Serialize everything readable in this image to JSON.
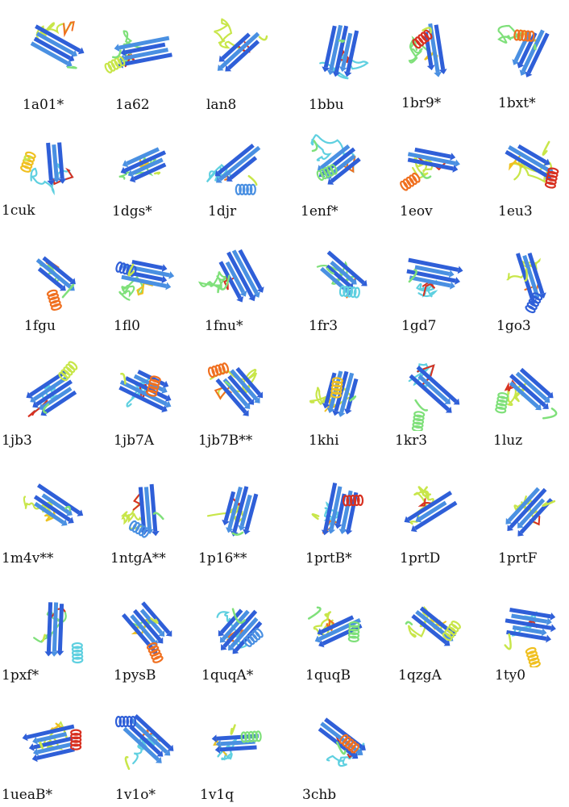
{
  "palette": [
    "#2f5fd8",
    "#4a90e2",
    "#5fd0e0",
    "#7fe07a",
    "#c8e64a",
    "#f0c020",
    "#f07020",
    "#d83020"
  ],
  "structures": [
    {
      "id": "1a01",
      "label": "1a01*"
    },
    {
      "id": "1a62",
      "label": "1a62"
    },
    {
      "id": "1an8",
      "label": "lan8"
    },
    {
      "id": "1bbu",
      "label": "1bbu"
    },
    {
      "id": "1br9",
      "label": "1br9*"
    },
    {
      "id": "1bxt",
      "label": "1bxt*"
    },
    {
      "id": "1cuk",
      "label": "1cuk"
    },
    {
      "id": "1dgs",
      "label": "1dgs*"
    },
    {
      "id": "1djr",
      "label": "1djr"
    },
    {
      "id": "1enf",
      "label": "1enf*"
    },
    {
      "id": "1eov",
      "label": "1eov"
    },
    {
      "id": "1eu3",
      "label": "1eu3"
    },
    {
      "id": "1fgu",
      "label": "1fgu"
    },
    {
      "id": "1fl0",
      "label": "1fl0"
    },
    {
      "id": "1fnu",
      "label": "1fnu*"
    },
    {
      "id": "1fr3",
      "label": "1fr3"
    },
    {
      "id": "1gd7",
      "label": "1gd7"
    },
    {
      "id": "1go3",
      "label": "1go3"
    },
    {
      "id": "1jb3",
      "label": "1jb3"
    },
    {
      "id": "1jb7A",
      "label": "1jb7A"
    },
    {
      "id": "1jb7B",
      "label": "1jb7B**"
    },
    {
      "id": "1khi",
      "label": "1khi"
    },
    {
      "id": "1kr3",
      "label": "1kr3"
    },
    {
      "id": "1luz",
      "label": "1luz"
    },
    {
      "id": "1m4v",
      "label": "1m4v**"
    },
    {
      "id": "1ntgA",
      "label": "1ntgA**"
    },
    {
      "id": "1p16",
      "label": "1p16**"
    },
    {
      "id": "1prtB",
      "label": "1prtB*"
    },
    {
      "id": "1prtD",
      "label": "1prtD"
    },
    {
      "id": "1prtF",
      "label": "1prtF"
    },
    {
      "id": "1pxf",
      "label": "1pxf*"
    },
    {
      "id": "1pysB",
      "label": "1pysB"
    },
    {
      "id": "1quqA",
      "label": "1quqA*"
    },
    {
      "id": "1quqB",
      "label": "1quqB"
    },
    {
      "id": "1qzgA",
      "label": "1qzgA"
    },
    {
      "id": "1ty0",
      "label": "1ty0"
    },
    {
      "id": "1ueaB",
      "label": "1ueaB*"
    },
    {
      "id": "1v1o",
      "label": "1v1o*"
    },
    {
      "id": "1v1q",
      "label": "1v1q"
    },
    {
      "id": "3chb",
      "label": "3chb"
    }
  ]
}
